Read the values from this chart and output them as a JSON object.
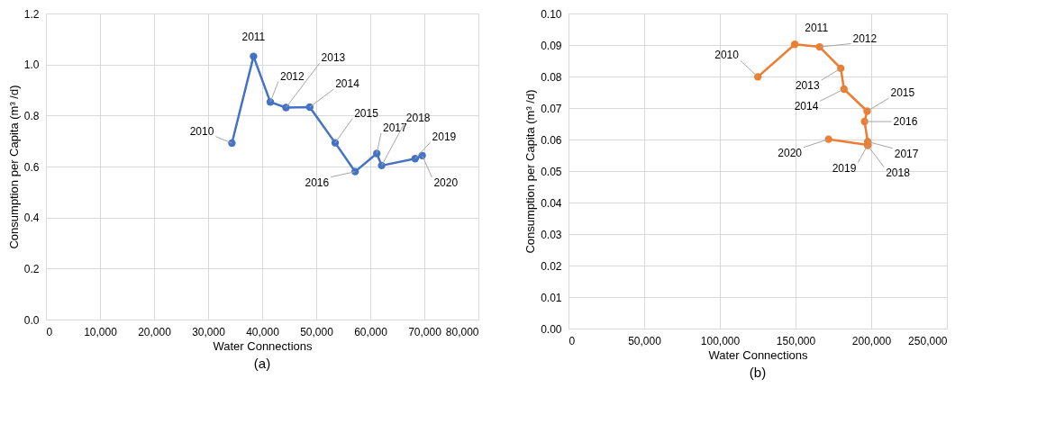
{
  "chart_data": [
    {
      "type": "line",
      "title": "(a)",
      "xlabel": "Water Connections",
      "ylabel": "Consumption per Capita (m³ /d)",
      "x": [
        34400,
        38400,
        41500,
        44400,
        48800,
        53500,
        57200,
        61200,
        62100,
        68300,
        69600
      ],
      "series": [
        {
          "color": "#4472c4",
          "values": [
            0.692,
            1.032,
            0.853,
            0.831,
            0.833,
            0.693,
            0.58,
            0.651,
            0.604,
            0.631,
            0.643
          ]
        }
      ],
      "xlim": [
        0,
        80000
      ],
      "ylim": [
        0,
        1.2
      ],
      "xticks": [
        0,
        {
          "value": 10000,
          "label": "10,000"
        },
        {
          "value": 20000,
          "label": "20,000"
        },
        {
          "value": 30000,
          "label": "30,000"
        },
        {
          "value": 40000,
          "label": "40,000"
        },
        {
          "value": 50000,
          "label": "50,000"
        },
        {
          "value": 60000,
          "label": "60,000"
        },
        {
          "value": 70000,
          "label": "70,000"
        },
        {
          "value": 80000,
          "label": "80,000"
        }
      ],
      "yticks": [
        {
          "value": 0,
          "label": "0.0"
        },
        0.2,
        0.4,
        0.6,
        0.8,
        {
          "value": 1,
          "label": "1.0"
        },
        1.2
      ],
      "annotations": [
        {
          "text": "2010",
          "x": 34400,
          "y": 0.692
        },
        {
          "text": "2011",
          "x": 38400,
          "y": 1.032
        },
        {
          "text": "2012",
          "x": 41500,
          "y": 0.853
        },
        {
          "text": "2013",
          "x": 44400,
          "y": 0.831
        },
        {
          "text": "2014",
          "x": 48800,
          "y": 0.833
        },
        {
          "text": "2015",
          "x": 53500,
          "y": 0.693
        },
        {
          "text": "2016",
          "x": 57200,
          "y": 0.58
        },
        {
          "text": "2017",
          "x": 61200,
          "y": 0.651
        },
        {
          "text": "2018",
          "x": 62100,
          "y": 0.604
        },
        {
          "text": "2019",
          "x": 68300,
          "y": 0.631
        },
        {
          "text": "2020",
          "x": 69600,
          "y": 0.643
        }
      ],
      "grid": true,
      "marker": "circle",
      "line_style": "solid"
    },
    {
      "type": "line",
      "title": "(b)",
      "xlabel": "Water Connections",
      "ylabel": "Consumption per Capita (m³ /d)",
      "x": [
        125100,
        149500,
        165900,
        179900,
        182000,
        197300,
        195600,
        197700,
        197700,
        197700,
        171800
      ],
      "series": [
        {
          "color": "#ed7d31",
          "values": [
            0.0799,
            0.0902,
            0.0894,
            0.0826,
            0.076,
            0.069,
            0.0657,
            0.0593,
            0.0581,
            0.0583,
            0.0601
          ]
        }
      ],
      "xlim": [
        0,
        250000
      ],
      "ylim": [
        0,
        0.1
      ],
      "xticks": [
        0,
        {
          "value": 50000,
          "label": "50,000"
        },
        {
          "value": 100000,
          "label": "100,000"
        },
        {
          "value": 150000,
          "label": "150,000"
        },
        {
          "value": 200000,
          "label": "200,000"
        },
        {
          "value": 250000,
          "label": "250,000"
        }
      ],
      "yticks": [
        {
          "value": 0,
          "label": "0.00"
        },
        0.01,
        0.02,
        0.03,
        0.04,
        0.05,
        0.06,
        0.07,
        0.08,
        0.09,
        {
          "value": 0.1,
          "label": "0.10"
        }
      ],
      "annotations": [
        {
          "text": "2010",
          "x": 125100,
          "y": 0.0799
        },
        {
          "text": "2011",
          "x": 149500,
          "y": 0.0902
        },
        {
          "text": "2012",
          "x": 165900,
          "y": 0.0894
        },
        {
          "text": "2013",
          "x": 179900,
          "y": 0.0826
        },
        {
          "text": "2014",
          "x": 182000,
          "y": 0.076
        },
        {
          "text": "2015",
          "x": 197300,
          "y": 0.069
        },
        {
          "text": "2016",
          "x": 195600,
          "y": 0.0657
        },
        {
          "text": "2017",
          "x": 197700,
          "y": 0.0593
        },
        {
          "text": "2018",
          "x": 197700,
          "y": 0.0581
        },
        {
          "text": "2019",
          "x": 197700,
          "y": 0.0583
        },
        {
          "text": "2020",
          "x": 171800,
          "y": 0.0601
        }
      ],
      "grid": true,
      "marker": "circle",
      "line_style": "solid"
    }
  ]
}
